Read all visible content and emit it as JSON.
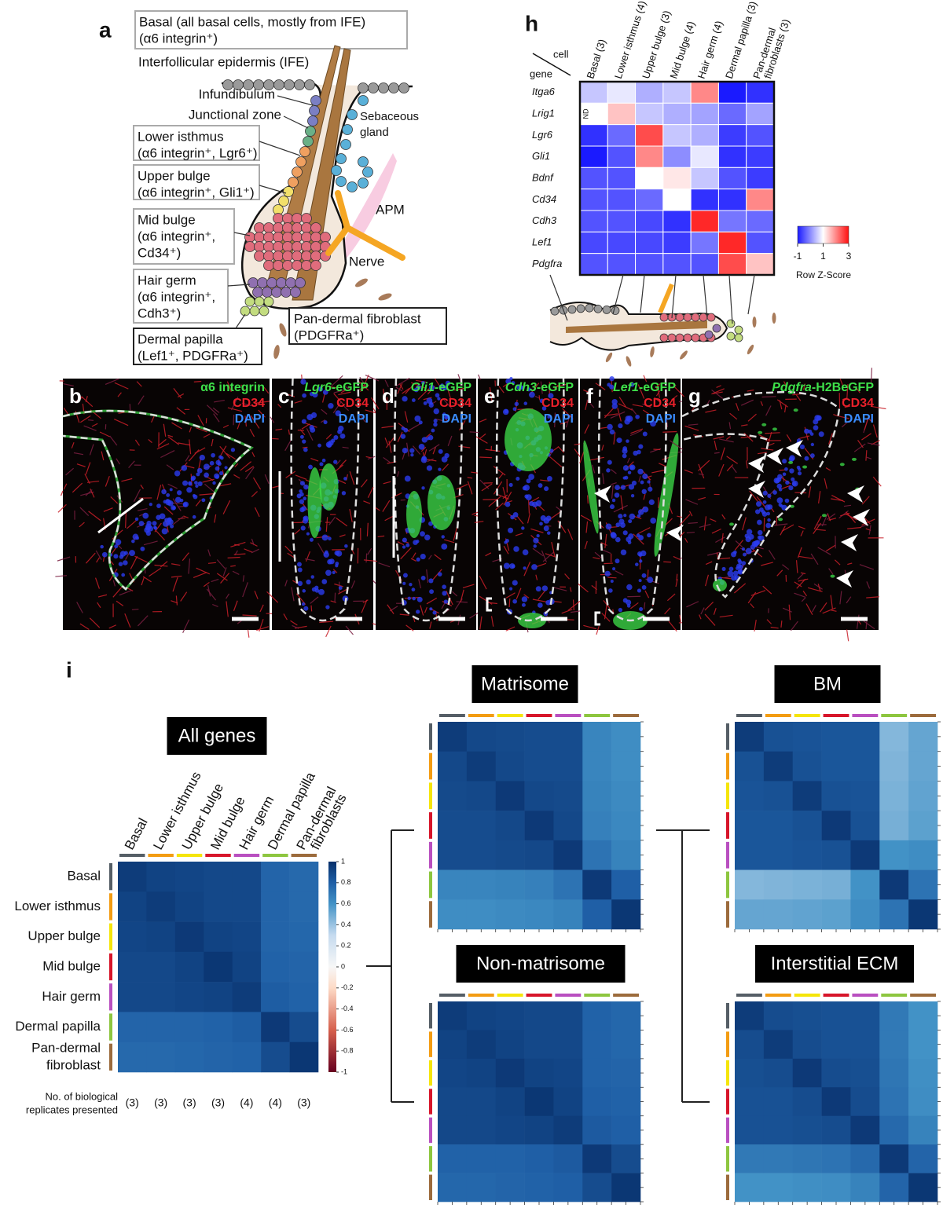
{
  "panel_a": {
    "letter": "a",
    "basal_box": [
      "Basal (all basal cells, mostly from IFE)",
      "(α6 integrin⁺)"
    ],
    "ife": "Interfollicular epidermis (IFE)",
    "infundibulum": "Infundibulum",
    "junctional_zone": "Junctional zone",
    "lower_isthmus": [
      "Lower isthmus",
      "(α6 integrin⁺, Lgr6⁺)"
    ],
    "upper_bulge": [
      "Upper bulge",
      "(α6 integrin⁺, Gli1⁺)"
    ],
    "mid_bulge": [
      "Mid bulge",
      "(α6 integrin⁺,",
      "Cd34⁺)"
    ],
    "hair_germ": [
      "Hair germ",
      "(α6 integrin⁺,",
      "Cdh3⁺)"
    ],
    "dermal_papilla": [
      "Dermal papilla",
      "(Lef1⁺, PDGFRa⁺)"
    ],
    "pan_dermal": [
      "Pan-dermal fibroblast",
      "(PDGFRa⁺)"
    ],
    "sebaceous": [
      "Sebaceous",
      "gland"
    ],
    "apm": "APM",
    "nerve": "Nerve"
  },
  "panel_h": {
    "letter": "h",
    "corner_cell": "cell",
    "corner_gene": "gene",
    "columns": [
      [
        "Basal (3)"
      ],
      [
        "Lower isthmus (4)"
      ],
      [
        "Upper bulge (3)"
      ],
      [
        "Mid bulge (4)"
      ],
      [
        "Hair germ (4)"
      ],
      [
        "Dermal papilla (3)"
      ],
      [
        "Pan-dermal",
        "fibroblasts (3)"
      ]
    ],
    "genes": [
      "Itga6",
      "Lrig1",
      "Lgr6",
      "Gli1",
      "Bdnf",
      "Cd34",
      "Cdh3",
      "Lef1",
      "Pdgfra"
    ],
    "z": [
      [
        0.5,
        0.8,
        0.3,
        0.5,
        2.0,
        -1.0,
        -0.8
      ],
      [
        null,
        1.5,
        0.5,
        0.3,
        0.2,
        -0.3,
        0.2
      ],
      [
        -0.8,
        -0.3,
        2.5,
        0.5,
        0.3,
        -0.7,
        -0.5
      ],
      [
        -1.0,
        -0.5,
        2.0,
        0.0,
        0.8,
        -0.8,
        -0.7
      ],
      [
        -0.5,
        -0.5,
        1.0,
        1.2,
        0.5,
        -0.5,
        -0.7
      ],
      [
        -0.5,
        -0.5,
        -0.3,
        1.0,
        -0.8,
        -0.8,
        2.0
      ],
      [
        -0.5,
        -0.5,
        -0.6,
        -0.8,
        2.8,
        -0.2,
        -0.3
      ],
      [
        -0.6,
        -0.6,
        -0.6,
        -0.7,
        -0.2,
        2.8,
        -0.5
      ],
      [
        -0.5,
        -0.5,
        -0.5,
        -0.5,
        -0.5,
        2.5,
        1.5
      ]
    ],
    "nd_label": "ND",
    "zlim": [
      -1,
      3
    ],
    "colorbar_ticks": [
      -1,
      1,
      3
    ],
    "colorbar_label": "Row Z-Score"
  },
  "micrographs": [
    {
      "letter": "b",
      "marker": "α6 integrin",
      "red": "CD34",
      "blue": "DAPI"
    },
    {
      "letter": "c",
      "reporter_gene": "Lgr6",
      "reporter_suffix": "-eGFP",
      "red": "CD34",
      "blue": "DAPI"
    },
    {
      "letter": "d",
      "reporter_gene": "Gli1",
      "reporter_suffix": "-eGFP",
      "red": "CD34",
      "blue": "DAPI"
    },
    {
      "letter": "e",
      "reporter_gene": "Cdh3",
      "reporter_suffix": "-eGFP",
      "red": "CD34",
      "blue": "DAPI"
    },
    {
      "letter": "f",
      "reporter_gene": "Lef1",
      "reporter_suffix": "-eGFP",
      "red": "CD34",
      "blue": "DAPI"
    },
    {
      "letter": "g",
      "reporter_gene": "Pdgfra",
      "reporter_suffix": "-H2BeGFP",
      "red": "CD34",
      "blue": "DAPI"
    }
  ],
  "panel_i": {
    "letter": "i",
    "clim": [
      -1,
      1
    ],
    "colorbar_ticks": [
      1,
      0.8,
      0.6,
      0.4,
      0.2,
      0,
      -0.2,
      -0.4,
      -0.6,
      -0.8,
      -1
    ],
    "group_colors": [
      "#555e66",
      "#f39c12",
      "#f5e50a",
      "#d7152a",
      "#b94fc0",
      "#8dc63f",
      "#9c6b3c"
    ],
    "row_labels": [
      [
        "Basal"
      ],
      [
        "Lower isthmus"
      ],
      [
        "Upper bulge"
      ],
      [
        "Mid bulge"
      ],
      [
        "Hair germ"
      ],
      [
        "Dermal papilla"
      ],
      [
        "Pan-dermal",
        "fibroblast"
      ]
    ],
    "col_labels": [
      [
        "Basal"
      ],
      [
        "Lower isthmus"
      ],
      [
        "Upper bulge"
      ],
      [
        "Mid bulge"
      ],
      [
        "Hair germ"
      ],
      [
        "Dermal papilla"
      ],
      [
        "Pan-dermal",
        "fibroblasts"
      ]
    ],
    "replicates_label": [
      "No. of biological",
      "replicates presented"
    ],
    "replicates": [
      "(3)",
      "(3)",
      "(3)",
      "(3)",
      "(4)",
      "(4)",
      "(3)"
    ],
    "all_genes": {
      "title": "All genes",
      "matrix": [
        [
          0.95,
          0.92,
          0.91,
          0.9,
          0.9,
          0.78,
          0.76
        ],
        [
          0.92,
          0.95,
          0.92,
          0.9,
          0.9,
          0.78,
          0.76
        ],
        [
          0.91,
          0.92,
          0.96,
          0.92,
          0.91,
          0.78,
          0.77
        ],
        [
          0.9,
          0.9,
          0.92,
          0.97,
          0.92,
          0.79,
          0.78
        ],
        [
          0.9,
          0.9,
          0.91,
          0.92,
          0.95,
          0.81,
          0.79
        ],
        [
          0.78,
          0.78,
          0.78,
          0.79,
          0.81,
          0.96,
          0.88
        ],
        [
          0.76,
          0.76,
          0.77,
          0.78,
          0.79,
          0.88,
          0.97
        ]
      ]
    },
    "matrisome": {
      "title": "Matrisome",
      "matrix": [
        [
          0.95,
          0.9,
          0.89,
          0.88,
          0.88,
          0.65,
          0.62
        ],
        [
          0.9,
          0.95,
          0.9,
          0.88,
          0.88,
          0.65,
          0.62
        ],
        [
          0.89,
          0.9,
          0.96,
          0.9,
          0.89,
          0.66,
          0.63
        ],
        [
          0.88,
          0.88,
          0.9,
          0.96,
          0.9,
          0.67,
          0.64
        ],
        [
          0.88,
          0.88,
          0.89,
          0.9,
          0.96,
          0.72,
          0.66
        ],
        [
          0.65,
          0.65,
          0.66,
          0.67,
          0.72,
          0.96,
          0.8
        ],
        [
          0.62,
          0.62,
          0.63,
          0.64,
          0.66,
          0.8,
          0.97
        ]
      ]
    },
    "bm": {
      "title": "BM",
      "matrix": [
        [
          0.95,
          0.86,
          0.85,
          0.84,
          0.84,
          0.45,
          0.52
        ],
        [
          0.86,
          0.95,
          0.86,
          0.84,
          0.84,
          0.46,
          0.52
        ],
        [
          0.85,
          0.86,
          0.95,
          0.86,
          0.85,
          0.47,
          0.53
        ],
        [
          0.84,
          0.84,
          0.86,
          0.96,
          0.86,
          0.48,
          0.54
        ],
        [
          0.84,
          0.84,
          0.85,
          0.86,
          0.96,
          0.6,
          0.62
        ],
        [
          0.45,
          0.46,
          0.47,
          0.48,
          0.6,
          0.96,
          0.72
        ],
        [
          0.52,
          0.52,
          0.53,
          0.54,
          0.62,
          0.72,
          0.97
        ]
      ]
    },
    "non_matrisome": {
      "title": "Non-matrisome",
      "matrix": [
        [
          0.95,
          0.92,
          0.91,
          0.9,
          0.9,
          0.79,
          0.77
        ],
        [
          0.92,
          0.95,
          0.92,
          0.9,
          0.9,
          0.79,
          0.77
        ],
        [
          0.91,
          0.92,
          0.96,
          0.92,
          0.91,
          0.79,
          0.78
        ],
        [
          0.9,
          0.9,
          0.92,
          0.97,
          0.92,
          0.8,
          0.79
        ],
        [
          0.9,
          0.9,
          0.91,
          0.92,
          0.95,
          0.82,
          0.8
        ],
        [
          0.79,
          0.79,
          0.79,
          0.8,
          0.82,
          0.96,
          0.88
        ],
        [
          0.77,
          0.77,
          0.78,
          0.79,
          0.8,
          0.88,
          0.97
        ]
      ]
    },
    "interstitial_ecm": {
      "title": "Interstitial ECM",
      "matrix": [
        [
          0.95,
          0.88,
          0.87,
          0.86,
          0.86,
          0.7,
          0.6
        ],
        [
          0.88,
          0.95,
          0.88,
          0.86,
          0.86,
          0.7,
          0.6
        ],
        [
          0.87,
          0.88,
          0.96,
          0.88,
          0.87,
          0.71,
          0.61
        ],
        [
          0.86,
          0.86,
          0.88,
          0.96,
          0.88,
          0.72,
          0.62
        ],
        [
          0.86,
          0.86,
          0.87,
          0.88,
          0.96,
          0.76,
          0.66
        ],
        [
          0.7,
          0.7,
          0.71,
          0.72,
          0.76,
          0.96,
          0.78
        ],
        [
          0.6,
          0.6,
          0.61,
          0.62,
          0.66,
          0.78,
          0.97
        ]
      ]
    }
  }
}
